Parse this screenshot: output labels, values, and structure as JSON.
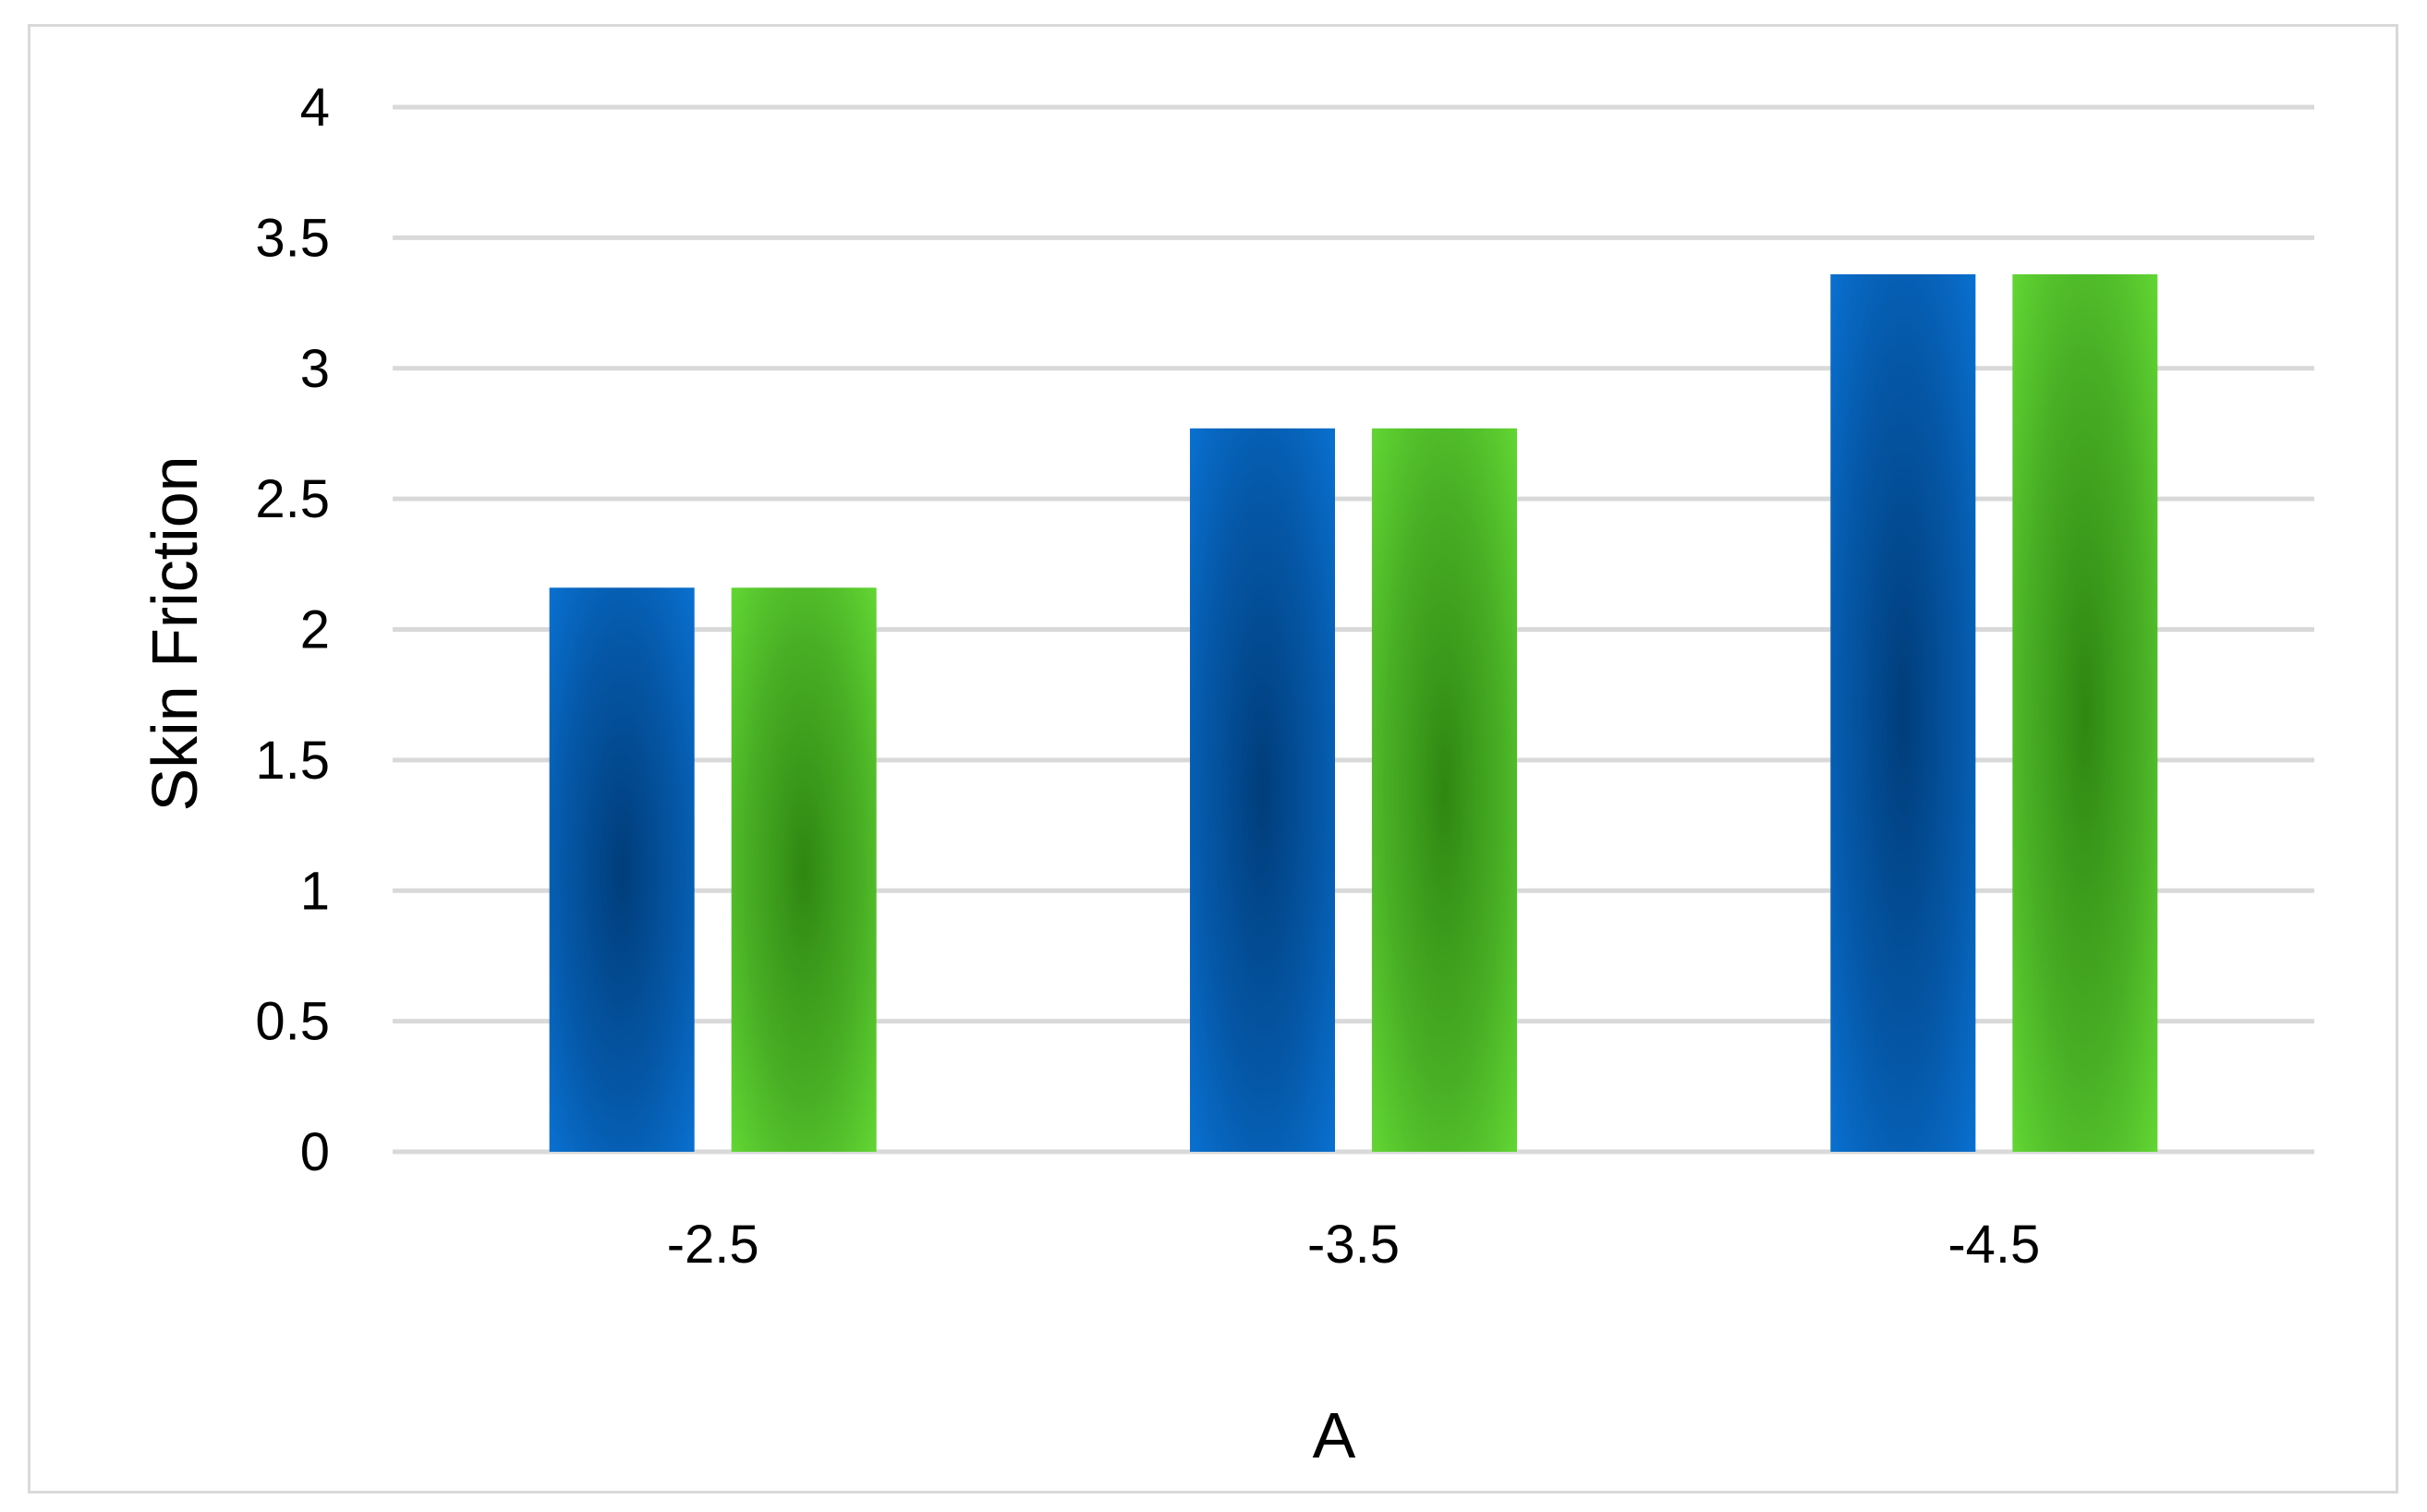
{
  "chart_data": {
    "type": "bar",
    "title": "",
    "xlabel": "A",
    "ylabel": "Skin Friction",
    "categories": [
      "-2.5",
      "-3.5",
      "-4.5"
    ],
    "series": [
      {
        "values": [
          2.16,
          2.77,
          3.36
        ],
        "color": "#0A6CC4"
      },
      {
        "values": [
          2.16,
          2.77,
          3.36
        ],
        "color": "#5CCC2E"
      }
    ],
    "ylim": [
      0,
      4
    ],
    "yticks": [
      "0",
      "0.5",
      "1",
      "1.5",
      "2",
      "2.5",
      "3",
      "3.5",
      "4"
    ],
    "grid": true,
    "legend": "none"
  }
}
